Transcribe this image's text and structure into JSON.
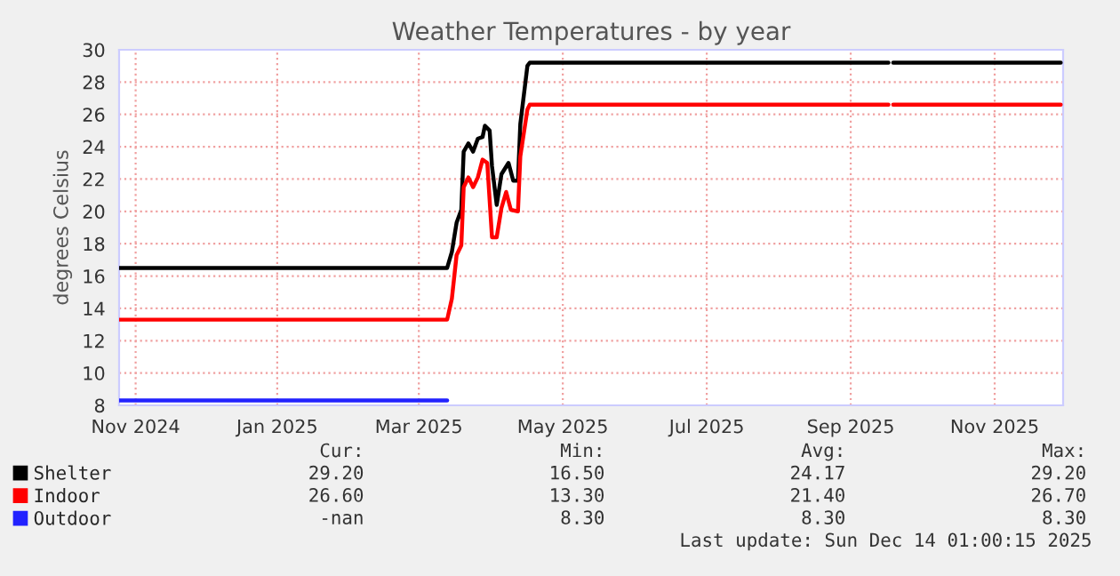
{
  "chart_data": {
    "type": "line",
    "title": "Weather Temperatures - by year",
    "ylabel": "degrees Celsius",
    "xlim": [
      "2024-11-09",
      "2025-12-14"
    ],
    "ylim": [
      8,
      30
    ],
    "yticks": [
      8,
      10,
      12,
      14,
      16,
      18,
      20,
      22,
      24,
      26,
      28,
      30
    ],
    "xticks": [
      {
        "value": "2024-11-16",
        "label": "Nov 2024"
      },
      {
        "value": "2025-01-15",
        "label": "Jan 2025"
      },
      {
        "value": "2025-03-16",
        "label": "Mar 2025"
      },
      {
        "value": "2025-05-16",
        "label": "May 2025"
      },
      {
        "value": "2025-07-16",
        "label": "Jul 2025"
      },
      {
        "value": "2025-09-15",
        "label": "Sep 2025"
      },
      {
        "value": "2025-11-15",
        "label": "Nov 2025"
      }
    ],
    "grid": true,
    "legend": "bottom",
    "series": [
      {
        "name": "Shelter",
        "color": "#000000",
        "x": [
          "2024-11-09",
          "2025-03-28",
          "2025-03-30",
          "2025-04-01",
          "2025-04-03",
          "2025-04-04",
          "2025-04-06",
          "2025-04-08",
          "2025-04-10",
          "2025-04-12",
          "2025-04-13",
          "2025-04-15",
          "2025-04-16",
          "2025-04-18",
          "2025-04-20",
          "2025-04-23",
          "2025-04-25",
          "2025-04-27",
          "2025-04-28",
          "2025-05-01",
          "2025-05-02",
          "2025-10-01",
          "2025-10-02",
          "2025-10-03",
          "2025-12-13"
        ],
        "values": [
          16.5,
          16.5,
          17.5,
          19.3,
          20.1,
          23.7,
          24.2,
          23.7,
          24.5,
          24.6,
          25.3,
          25.0,
          22.8,
          20.4,
          22.3,
          23.0,
          21.9,
          21.9,
          25.4,
          29.0,
          29.2,
          29.2,
          null,
          29.2,
          29.2
        ]
      },
      {
        "name": "Indoor",
        "color": "#ff0000",
        "x": [
          "2024-11-09",
          "2025-03-28",
          "2025-03-30",
          "2025-04-01",
          "2025-04-03",
          "2025-04-04",
          "2025-04-06",
          "2025-04-08",
          "2025-04-10",
          "2025-04-12",
          "2025-04-14",
          "2025-04-16",
          "2025-04-18",
          "2025-04-20",
          "2025-04-22",
          "2025-04-24",
          "2025-04-27",
          "2025-04-28",
          "2025-05-01",
          "2025-05-02",
          "2025-10-01",
          "2025-10-02",
          "2025-10-03",
          "2025-12-13"
        ],
        "values": [
          13.3,
          13.3,
          14.6,
          17.3,
          17.9,
          21.5,
          22.1,
          21.5,
          22.1,
          23.2,
          23.0,
          18.4,
          18.4,
          20.2,
          21.2,
          20.1,
          20.0,
          23.4,
          26.3,
          26.6,
          26.6,
          null,
          26.6,
          26.6
        ]
      },
      {
        "name": "Outdoor",
        "color": "#2222ff",
        "x": [
          "2024-11-09",
          "2025-03-28"
        ],
        "values": [
          8.3,
          8.3
        ]
      }
    ],
    "annotations": [
      "Cur:",
      "Min:",
      "Avg:",
      "Max:",
      "29.20",
      "16.50",
      "24.17",
      "29.20",
      "26.60",
      "13.30",
      "21.40",
      "26.70",
      "-nan",
      "8.30",
      "8.30",
      "8.30",
      "Last update: Sun Dec 14 01:00:15 2025"
    ]
  }
}
